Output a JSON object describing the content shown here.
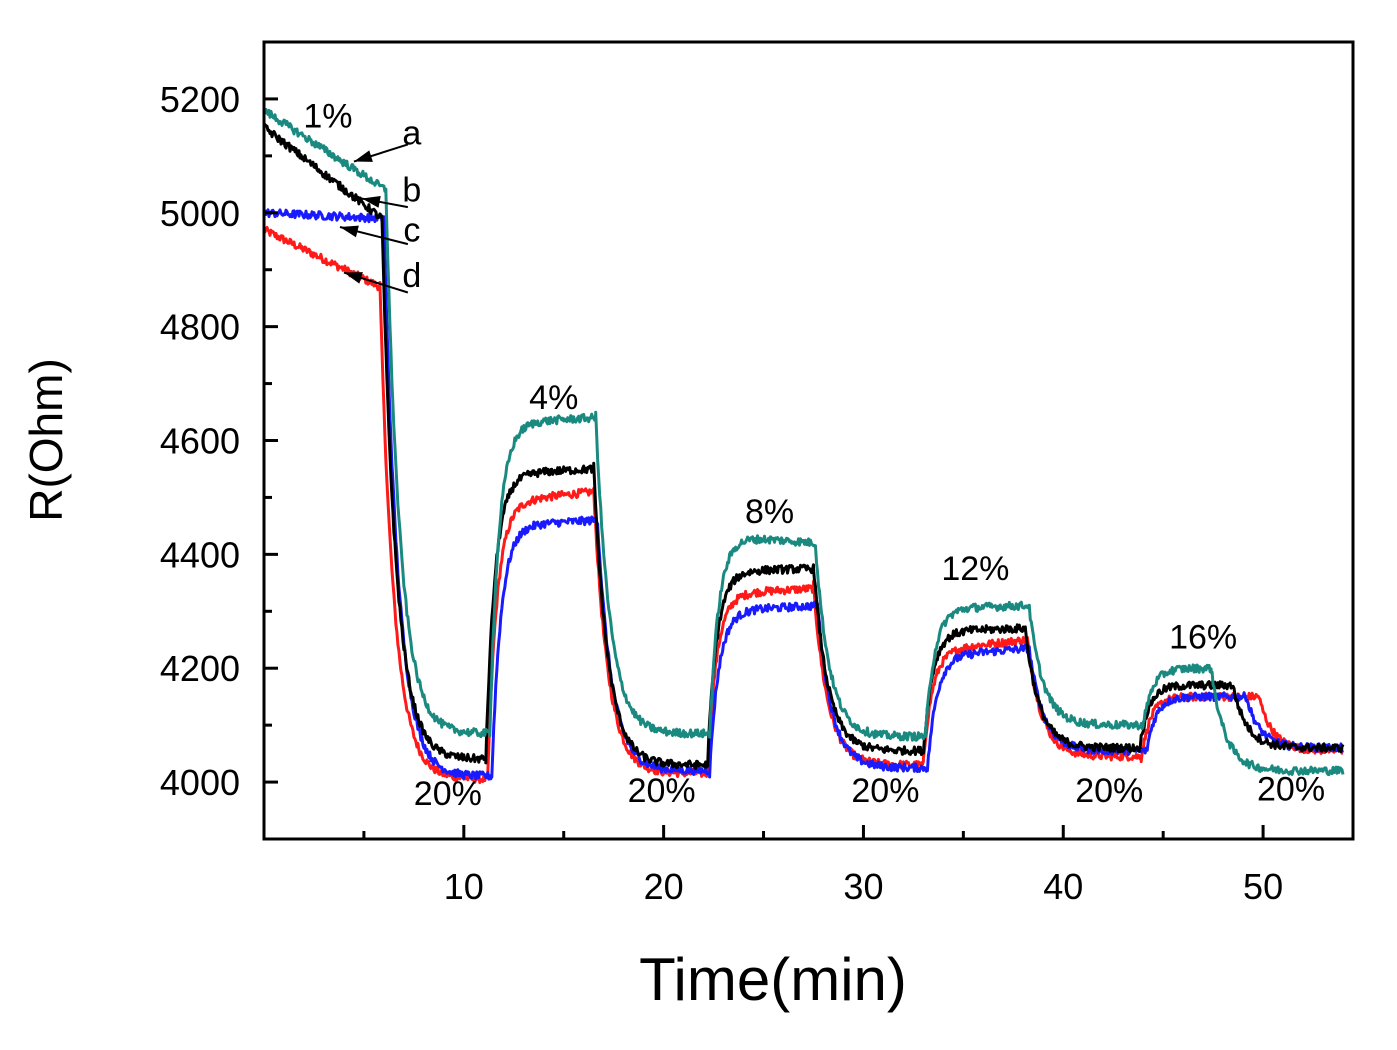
{
  "chart_data": {
    "type": "line",
    "title": "",
    "xlabel": "Time(min)",
    "ylabel": "R(Ohm)",
    "xlim": [
      0,
      54.5
    ],
    "ylim": [
      3900,
      5300
    ],
    "xticks": [
      10,
      20,
      30,
      40,
      50
    ],
    "yticks": [
      4000,
      4200,
      4400,
      4600,
      4800,
      5000,
      5200
    ],
    "grid": false,
    "phases": [
      {
        "start": 0,
        "end": 5.6,
        "label": "1%"
      },
      {
        "start": 5.6,
        "end": 11.2,
        "label": "20%"
      },
      {
        "start": 11.2,
        "end": 16.5,
        "label": "4%"
      },
      {
        "start": 16.5,
        "end": 22.2,
        "label": "20%"
      },
      {
        "start": 22.2,
        "end": 27.5,
        "label": "8%"
      },
      {
        "start": 27.5,
        "end": 33.0,
        "label": "20%"
      },
      {
        "start": 33.0,
        "end": 38.2,
        "label": "12%"
      },
      {
        "start": 38.2,
        "end": 43.8,
        "label": "20%"
      },
      {
        "start": 43.8,
        "end": 48.8,
        "label": "16%"
      },
      {
        "start": 48.8,
        "end": 54.0,
        "label": "20%"
      }
    ],
    "series": [
      {
        "name": "a",
        "color": "#1a8a80",
        "high_start": [
          5180,
          4630,
          4435,
          4305,
          4200
        ],
        "high_end": [
          5040,
          4640,
          4420,
          4310,
          4200
        ],
        "low": [
          4085,
          4085,
          4080,
          4100,
          4020
        ],
        "switch_times": [
          6.1,
          11.3,
          16.6,
          22.3,
          27.6,
          33.1,
          38.3,
          44.0,
          47.4
        ]
      },
      {
        "name": "b",
        "color": "#000000",
        "high_start": [
          5150,
          4540,
          4370,
          4265,
          4170
        ],
        "high_end": [
          4990,
          4550,
          4375,
          4270,
          4170
        ],
        "low": [
          4040,
          4030,
          4055,
          4060,
          4060
        ],
        "switch_times": [
          5.9,
          11.1,
          16.5,
          22.2,
          27.5,
          33.0,
          38.1,
          43.8,
          48.5
        ]
      },
      {
        "name": "c",
        "color": "#1a1aff",
        "high_start": [
          5000,
          4450,
          4300,
          4220,
          4150
        ],
        "high_end": [
          4990,
          4460,
          4310,
          4235,
          4150
        ],
        "low": [
          4010,
          4020,
          4025,
          4055,
          4060
        ],
        "switch_times": [
          6.0,
          11.4,
          16.7,
          22.3,
          27.7,
          33.2,
          38.3,
          44.2,
          49.2
        ]
      },
      {
        "name": "d",
        "color": "#ff1a1a",
        "high_start": [
          4970,
          4490,
          4330,
          4230,
          4150
        ],
        "high_end": [
          4870,
          4510,
          4340,
          4250,
          4150
        ],
        "low": [
          4005,
          4015,
          4030,
          4045,
          4055
        ],
        "switch_times": [
          5.8,
          11.2,
          16.5,
          22.2,
          27.5,
          33.0,
          38.2,
          43.9,
          49.8
        ]
      }
    ],
    "annotations": [
      {
        "text": "1%",
        "x": 3.2,
        "y": 5150
      },
      {
        "text": "a",
        "x": 7.4,
        "y": 5120
      },
      {
        "text": "b",
        "x": 7.4,
        "y": 5020
      },
      {
        "text": "c",
        "x": 7.4,
        "y": 4950
      },
      {
        "text": "d",
        "x": 7.4,
        "y": 4870
      },
      {
        "text": "4%",
        "x": 14.5,
        "y": 4655
      },
      {
        "text": "20%",
        "x": 9.2,
        "y": 3960
      },
      {
        "text": "8%",
        "x": 25.3,
        "y": 4455
      },
      {
        "text": "20%",
        "x": 19.9,
        "y": 3965
      },
      {
        "text": "12%",
        "x": 35.6,
        "y": 4355
      },
      {
        "text": "20%",
        "x": 31.1,
        "y": 3965
      },
      {
        "text": "16%",
        "x": 47.0,
        "y": 4235
      },
      {
        "text": "20%",
        "x": 42.3,
        "y": 3965
      },
      {
        "text": "20%",
        "x": 51.4,
        "y": 3968
      }
    ],
    "arrows": [
      {
        "from": [
          7.2,
          5120
        ],
        "to": [
          4.5,
          5090
        ]
      },
      {
        "from": [
          7.2,
          5010
        ],
        "to": [
          4.9,
          5025
        ]
      },
      {
        "from": [
          7.2,
          4945
        ],
        "to": [
          3.8,
          4975
        ]
      },
      {
        "from": [
          7.2,
          4860
        ],
        "to": [
          4.0,
          4895
        ]
      }
    ]
  }
}
